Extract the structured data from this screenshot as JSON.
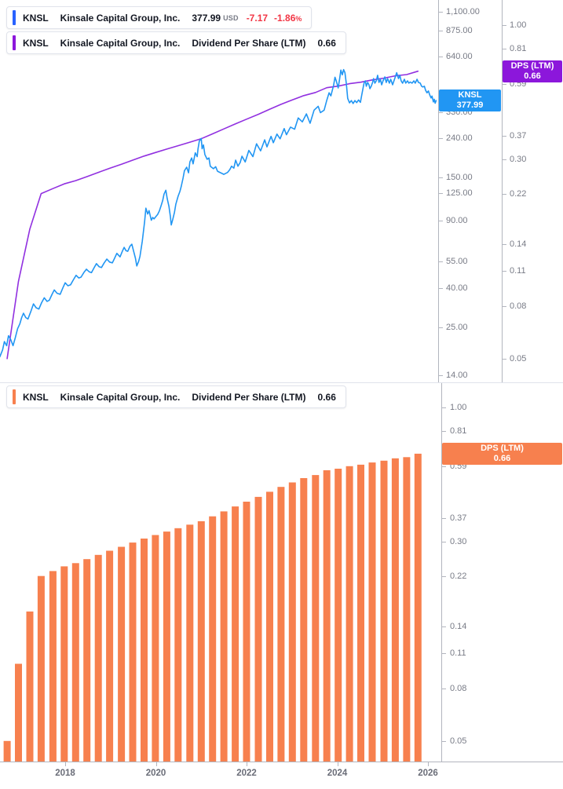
{
  "legend_price": {
    "symbol": "KNSL",
    "name": "Kinsale Capital Group, Inc.",
    "price": "377.99",
    "currency": "USD",
    "change": "-7.17",
    "change_pct": "-1.86",
    "percent_sign": "%"
  },
  "legend_dps_top": {
    "symbol": "KNSL",
    "name": "Kinsale Capital Group, Inc.",
    "metric": "Dividend Per Share (LTM)",
    "value": "0.66"
  },
  "legend_dps_bottom": {
    "symbol": "KNSL",
    "name": "Kinsale Capital Group, Inc.",
    "metric": "Dividend Per Share (LTM)",
    "value": "0.66"
  },
  "price_axis_label": {
    "symbol": "KNSL",
    "value": "377.99"
  },
  "dps_axis_label_top": {
    "title": "DPS (LTM)",
    "value": "0.66"
  },
  "dps_axis_label_bottom": {
    "title": "DPS (LTM)",
    "value": "0.66"
  },
  "colors": {
    "price_line": "#2196F3",
    "price_label_bg": "#2196F3",
    "legend_price_bar": "#2962FF",
    "dps_line": "#9130E0",
    "dps_label_bg": "#8C17DB",
    "bar_orange": "#F7804E",
    "negative_red": "#F23645",
    "axis_line": "#B2B5BE",
    "tick_text": "#787B86",
    "legend_text": "#131722"
  },
  "axes": {
    "price_ticks": [
      {
        "label": "1,100.00",
        "value": 1100
      },
      {
        "label": "875.00",
        "value": 875
      },
      {
        "label": "640.00",
        "value": 640
      },
      {
        "label": "400.00",
        "value": 400
      },
      {
        "label": "330.00",
        "value": 330
      },
      {
        "label": "240.00",
        "value": 240
      },
      {
        "label": "150.00",
        "value": 150
      },
      {
        "label": "125.00",
        "value": 125
      },
      {
        "label": "90.00",
        "value": 90
      },
      {
        "label": "55.00",
        "value": 55
      },
      {
        "label": "40.00",
        "value": 40
      },
      {
        "label": "25.00",
        "value": 25
      },
      {
        "label": "14.00",
        "value": 14
      }
    ],
    "dps_ticks": [
      {
        "label": "1.00",
        "value": 1.0
      },
      {
        "label": "0.81",
        "value": 0.81
      },
      {
        "label": "0.59",
        "value": 0.59
      },
      {
        "label": "0.37",
        "value": 0.37
      },
      {
        "label": "0.30",
        "value": 0.3
      },
      {
        "label": "0.22",
        "value": 0.22
      },
      {
        "label": "0.14",
        "value": 0.14
      },
      {
        "label": "0.11",
        "value": 0.11
      },
      {
        "label": "0.08",
        "value": 0.08
      },
      {
        "label": "0.05",
        "value": 0.05
      }
    ],
    "year_ticks": [
      {
        "label": "2018",
        "year": 2018
      },
      {
        "label": "2020",
        "year": 2020
      },
      {
        "label": "2022",
        "year": 2022
      },
      {
        "label": "2024",
        "year": 2024
      },
      {
        "label": "2026",
        "year": 2026
      }
    ]
  },
  "chart_data": [
    {
      "type": "line",
      "name": "KNSL stock price",
      "yscale": "log",
      "ylim": [
        14,
        1100
      ],
      "legend_position": "top-left",
      "grid": false,
      "last_value": 377.99,
      "points": [
        [
          2016.56,
          17.5
        ],
        [
          2016.62,
          19
        ],
        [
          2016.66,
          21
        ],
        [
          2016.71,
          20
        ],
        [
          2016.75,
          22.5
        ],
        [
          2016.8,
          21.5
        ],
        [
          2016.85,
          20
        ],
        [
          2016.9,
          22
        ],
        [
          2016.95,
          24.5
        ],
        [
          2017.0,
          26
        ],
        [
          2017.04,
          28
        ],
        [
          2017.08,
          29.5
        ],
        [
          2017.13,
          28
        ],
        [
          2017.18,
          27.5
        ],
        [
          2017.24,
          30
        ],
        [
          2017.3,
          33
        ],
        [
          2017.36,
          31.5
        ],
        [
          2017.42,
          31
        ],
        [
          2017.48,
          33.5
        ],
        [
          2017.54,
          35.5
        ],
        [
          2017.6,
          34
        ],
        [
          2017.65,
          34.5
        ],
        [
          2017.71,
          37
        ],
        [
          2017.76,
          39
        ],
        [
          2017.82,
          37.5
        ],
        [
          2017.89,
          37
        ],
        [
          2017.95,
          40
        ],
        [
          2018.0,
          42.5
        ],
        [
          2018.06,
          41
        ],
        [
          2018.12,
          41.5
        ],
        [
          2018.18,
          44
        ],
        [
          2018.24,
          46.5
        ],
        [
          2018.3,
          45
        ],
        [
          2018.35,
          45.5
        ],
        [
          2018.41,
          48
        ],
        [
          2018.47,
          50
        ],
        [
          2018.53,
          48.5
        ],
        [
          2018.58,
          48
        ],
        [
          2018.64,
          51
        ],
        [
          2018.69,
          53.5
        ],
        [
          2018.75,
          51.5
        ],
        [
          2018.8,
          51
        ],
        [
          2018.86,
          54
        ],
        [
          2018.92,
          56.5
        ],
        [
          2018.98,
          54.5
        ],
        [
          2019.04,
          54
        ],
        [
          2019.09,
          57
        ],
        [
          2019.14,
          60.5
        ],
        [
          2019.21,
          58
        ],
        [
          2019.26,
          62
        ],
        [
          2019.3,
          65
        ],
        [
          2019.34,
          62.5
        ],
        [
          2019.38,
          62
        ],
        [
          2019.43,
          66
        ],
        [
          2019.47,
          67.5
        ],
        [
          2019.51,
          62
        ],
        [
          2019.55,
          57
        ],
        [
          2019.58,
          52
        ],
        [
          2019.62,
          55
        ],
        [
          2019.65,
          58.5
        ],
        [
          2019.7,
          70
        ],
        [
          2019.73,
          80
        ],
        [
          2019.75,
          88
        ],
        [
          2019.78,
          104
        ],
        [
          2019.82,
          97
        ],
        [
          2019.85,
          101
        ],
        [
          2019.9,
          90
        ],
        [
          2019.93,
          93
        ],
        [
          2019.96,
          91.5
        ],
        [
          2020.0,
          94
        ],
        [
          2020.04,
          96.5
        ],
        [
          2020.08,
          101
        ],
        [
          2020.12,
          108
        ],
        [
          2020.15,
          114
        ],
        [
          2020.18,
          123
        ],
        [
          2020.22,
          129
        ],
        [
          2020.25,
          117
        ],
        [
          2020.29,
          106
        ],
        [
          2020.32,
          94
        ],
        [
          2020.34,
          85
        ],
        [
          2020.37,
          90.5
        ],
        [
          2020.41,
          99
        ],
        [
          2020.44,
          109
        ],
        [
          2020.49,
          120
        ],
        [
          2020.53,
          127
        ],
        [
          2020.56,
          135
        ],
        [
          2020.6,
          149
        ],
        [
          2020.63,
          163
        ],
        [
          2020.68,
          170
        ],
        [
          2020.72,
          159
        ],
        [
          2020.75,
          181
        ],
        [
          2020.79,
          190
        ],
        [
          2020.82,
          177
        ],
        [
          2020.87,
          202
        ],
        [
          2020.91,
          193
        ],
        [
          2020.93,
          212
        ],
        [
          2020.96,
          233
        ],
        [
          2021.0,
          240
        ],
        [
          2021.02,
          212
        ],
        [
          2021.05,
          222
        ],
        [
          2021.08,
          198
        ],
        [
          2021.13,
          187
        ],
        [
          2021.17,
          190
        ],
        [
          2021.2,
          172
        ],
        [
          2021.27,
          167
        ],
        [
          2021.32,
          171
        ],
        [
          2021.36,
          162
        ],
        [
          2021.43,
          159
        ],
        [
          2021.5,
          156
        ],
        [
          2021.58,
          159.5
        ],
        [
          2021.63,
          165
        ],
        [
          2021.67,
          172
        ],
        [
          2021.72,
          168
        ],
        [
          2021.76,
          185
        ],
        [
          2021.81,
          172
        ],
        [
          2021.86,
          180
        ],
        [
          2021.9,
          194
        ],
        [
          2021.97,
          181
        ],
        [
          2022.05,
          208
        ],
        [
          2022.14,
          193
        ],
        [
          2022.22,
          225
        ],
        [
          2022.31,
          207
        ],
        [
          2022.4,
          236
        ],
        [
          2022.45,
          217
        ],
        [
          2022.54,
          246
        ],
        [
          2022.59,
          228
        ],
        [
          2022.67,
          253
        ],
        [
          2022.74,
          239
        ],
        [
          2022.83,
          270
        ],
        [
          2022.88,
          251
        ],
        [
          2022.97,
          275
        ],
        [
          2023.06,
          268
        ],
        [
          2023.14,
          307
        ],
        [
          2023.23,
          293
        ],
        [
          2023.32,
          322
        ],
        [
          2023.4,
          288
        ],
        [
          2023.49,
          337
        ],
        [
          2023.58,
          353
        ],
        [
          2023.63,
          327
        ],
        [
          2023.71,
          337
        ],
        [
          2023.77,
          380
        ],
        [
          2023.82,
          415
        ],
        [
          2023.86,
          400
        ],
        [
          2023.92,
          455
        ],
        [
          2023.95,
          500
        ],
        [
          2023.98,
          478
        ],
        [
          2024.02,
          440
        ],
        [
          2024.05,
          487
        ],
        [
          2024.08,
          545
        ],
        [
          2024.11,
          515
        ],
        [
          2024.14,
          548
        ],
        [
          2024.17,
          528
        ],
        [
          2024.2,
          462
        ],
        [
          2024.23,
          388
        ],
        [
          2024.27,
          368
        ],
        [
          2024.31,
          378
        ],
        [
          2024.35,
          365
        ],
        [
          2024.39,
          378
        ],
        [
          2024.43,
          369
        ],
        [
          2024.47,
          381
        ],
        [
          2024.51,
          370
        ],
        [
          2024.54,
          404
        ],
        [
          2024.56,
          427
        ],
        [
          2024.59,
          466
        ],
        [
          2024.62,
          479
        ],
        [
          2024.64,
          449
        ],
        [
          2024.67,
          470
        ],
        [
          2024.7,
          457
        ],
        [
          2024.72,
          436
        ],
        [
          2024.75,
          449
        ],
        [
          2024.78,
          470
        ],
        [
          2024.8,
          492
        ],
        [
          2024.83,
          466
        ],
        [
          2024.86,
          479
        ],
        [
          2024.89,
          512
        ],
        [
          2024.92,
          470
        ],
        [
          2024.95,
          488
        ],
        [
          2024.98,
          457
        ],
        [
          2025.01,
          479
        ],
        [
          2025.05,
          502
        ],
        [
          2025.08,
          470
        ],
        [
          2025.11,
          492
        ],
        [
          2025.15,
          466
        ],
        [
          2025.18,
          488
        ],
        [
          2025.22,
          457
        ],
        [
          2025.25,
          479
        ],
        [
          2025.28,
          502
        ],
        [
          2025.31,
          528
        ],
        [
          2025.35,
          492
        ],
        [
          2025.38,
          512
        ],
        [
          2025.41,
          479
        ],
        [
          2025.44,
          466
        ],
        [
          2025.48,
          488
        ],
        [
          2025.51,
          466
        ],
        [
          2025.55,
          479
        ],
        [
          2025.58,
          466
        ],
        [
          2025.61,
          472
        ],
        [
          2025.65,
          466
        ],
        [
          2025.69,
          479
        ],
        [
          2025.72,
          466
        ],
        [
          2025.76,
          488
        ],
        [
          2025.79,
          470
        ],
        [
          2025.83,
          466
        ],
        [
          2025.86,
          449
        ],
        [
          2025.89,
          445
        ],
        [
          2025.92,
          449
        ],
        [
          2025.95,
          427
        ],
        [
          2025.98,
          415
        ],
        [
          2026.01,
          424
        ],
        [
          2026.04,
          404
        ],
        [
          2026.07,
          390
        ],
        [
          2026.09,
          399
        ],
        [
          2026.12,
          372
        ],
        [
          2026.14,
          384
        ],
        [
          2026.16,
          366
        ],
        [
          2026.18,
          378
        ]
      ]
    },
    {
      "type": "line",
      "name": "Dividend Per Share (LTM)",
      "yscale": "log",
      "ylim": [
        0.04,
        1.25
      ],
      "grid": false,
      "last_value": 0.66,
      "points": [
        [
          2016.72,
          0.05
        ],
        [
          2016.97,
          0.1
        ],
        [
          2017.22,
          0.16
        ],
        [
          2017.47,
          0.22
        ],
        [
          2017.73,
          0.23
        ],
        [
          2017.98,
          0.24
        ],
        [
          2018.23,
          0.247
        ],
        [
          2018.48,
          0.256
        ],
        [
          2018.73,
          0.266
        ],
        [
          2018.98,
          0.276
        ],
        [
          2019.24,
          0.286
        ],
        [
          2019.49,
          0.297
        ],
        [
          2019.74,
          0.308
        ],
        [
          2019.99,
          0.318
        ],
        [
          2020.24,
          0.328
        ],
        [
          2020.49,
          0.338
        ],
        [
          2020.75,
          0.349
        ],
        [
          2021.0,
          0.36
        ],
        [
          2021.25,
          0.376
        ],
        [
          2021.5,
          0.393
        ],
        [
          2021.75,
          0.411
        ],
        [
          2022.0,
          0.429
        ],
        [
          2022.26,
          0.448
        ],
        [
          2022.51,
          0.469
        ],
        [
          2022.76,
          0.49
        ],
        [
          2023.01,
          0.51
        ],
        [
          2023.26,
          0.53
        ],
        [
          2023.52,
          0.545
        ],
        [
          2023.77,
          0.569
        ],
        [
          2024.02,
          0.577
        ],
        [
          2024.27,
          0.59
        ],
        [
          2024.52,
          0.598
        ],
        [
          2024.77,
          0.61
        ],
        [
          2025.03,
          0.62
        ],
        [
          2025.28,
          0.633
        ],
        [
          2025.53,
          0.64
        ],
        [
          2025.78,
          0.66
        ]
      ]
    },
    {
      "type": "bar",
      "name": "Dividend Per Share (LTM)",
      "yscale": "log",
      "ylim": [
        0.04,
        1.25
      ],
      "grid": false,
      "last_value": 0.66,
      "note": "same quarterly series as line above; bars rendered in bottom panel",
      "points_same_as_series": "Dividend Per Share (LTM)"
    }
  ]
}
